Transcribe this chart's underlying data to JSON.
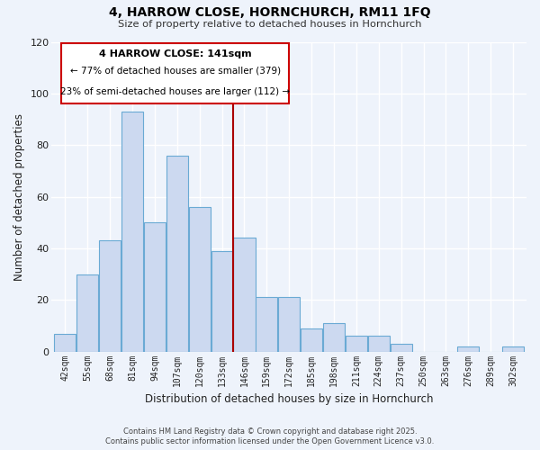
{
  "title": "4, HARROW CLOSE, HORNCHURCH, RM11 1FQ",
  "subtitle": "Size of property relative to detached houses in Hornchurch",
  "xlabel": "Distribution of detached houses by size in Hornchurch",
  "ylabel": "Number of detached properties",
  "bar_labels": [
    "42sqm",
    "55sqm",
    "68sqm",
    "81sqm",
    "94sqm",
    "107sqm",
    "120sqm",
    "133sqm",
    "146sqm",
    "159sqm",
    "172sqm",
    "185sqm",
    "198sqm",
    "211sqm",
    "224sqm",
    "237sqm",
    "250sqm",
    "263sqm",
    "276sqm",
    "289sqm",
    "302sqm"
  ],
  "bar_values": [
    7,
    30,
    43,
    93,
    50,
    76,
    56,
    39,
    44,
    21,
    21,
    9,
    11,
    6,
    6,
    3,
    0,
    0,
    2,
    0,
    2
  ],
  "bar_color": "#ccd9f0",
  "bar_edge_color": "#6aaad4",
  "vline_color": "#aa0000",
  "ylim": [
    0,
    120
  ],
  "yticks": [
    0,
    20,
    40,
    60,
    80,
    100,
    120
  ],
  "annotation_title": "4 HARROW CLOSE: 141sqm",
  "annotation_line1": "← 77% of detached houses are smaller (379)",
  "annotation_line2": "23% of semi-detached houses are larger (112) →",
  "annotation_box_facecolor": "#ffffff",
  "annotation_box_edge": "#cc0000",
  "footer1": "Contains HM Land Registry data © Crown copyright and database right 2025.",
  "footer2": "Contains public sector information licensed under the Open Government Licence v3.0.",
  "background_color": "#eef3fb",
  "grid_color": "#ffffff"
}
